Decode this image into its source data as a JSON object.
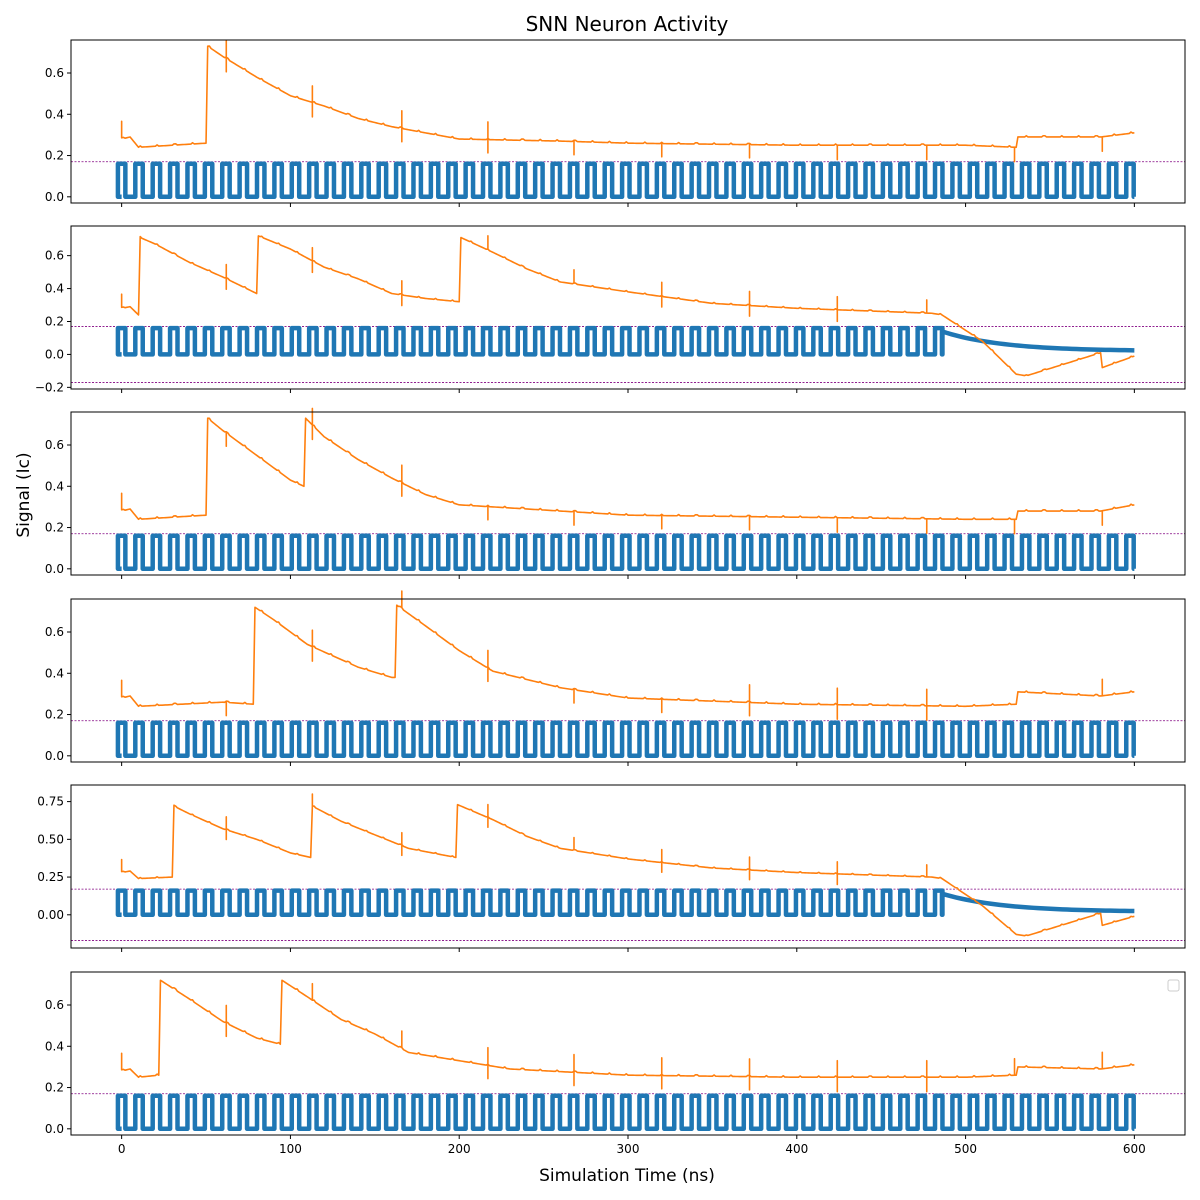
{
  "chart_data": {
    "type": "line",
    "title": "SNN Neuron Activity",
    "xlabel": "Simulation Time (ns)",
    "ylabel": "Signal (Ic)",
    "xlim": [
      -30,
      630
    ],
    "x_ticks": [
      0,
      100,
      200,
      300,
      400,
      500,
      600
    ],
    "colors": {
      "spike_trace": "#1f77b4",
      "membrane_trace": "#ff7f0e",
      "threshold_line": "#800080"
    },
    "threshold": 0.17,
    "spike_period_ns": 10.3,
    "spike_peak": 0.16,
    "grid": false,
    "legend": "top-right (empty)",
    "subplots": [
      {
        "ylim": [
          -0.03,
          0.76
        ],
        "y_ticks": [
          0.0,
          0.2,
          0.4,
          0.6
        ],
        "y_tick_labels": [
          "0.0",
          "0.2",
          "0.4",
          "0.6"
        ],
        "threshold_lines": [
          0.17
        ],
        "spike_end_x": 600,
        "decay": null,
        "membrane_knots": [
          [
            0,
            0.28
          ],
          [
            5,
            0.29
          ],
          [
            10,
            0.24
          ],
          [
            30,
            0.25
          ],
          [
            50,
            0.26
          ],
          [
            51,
            0.73
          ],
          [
            60,
            0.68
          ],
          [
            80,
            0.58
          ],
          [
            100,
            0.49
          ],
          [
            120,
            0.44
          ],
          [
            140,
            0.38
          ],
          [
            160,
            0.34
          ],
          [
            180,
            0.31
          ],
          [
            200,
            0.28
          ],
          [
            260,
            0.27
          ],
          [
            300,
            0.26
          ],
          [
            400,
            0.25
          ],
          [
            500,
            0.25
          ],
          [
            530,
            0.24
          ],
          [
            531,
            0.29
          ],
          [
            580,
            0.29
          ],
          [
            600,
            0.31
          ]
        ],
        "dips_ns": [
          62,
          113,
          166,
          217,
          268,
          320,
          372,
          424,
          477,
          529,
          581
        ],
        "spikes_up_ns": [
          0,
          62,
          113,
          166,
          217
        ]
      },
      {
        "ylim": [
          -0.21,
          0.78
        ],
        "y_ticks": [
          -0.2,
          0.0,
          0.2,
          0.4,
          0.6
        ],
        "y_tick_labels": [
          "−0.2",
          "0.0",
          "0.2",
          "0.4",
          "0.6"
        ],
        "threshold_lines": [
          0.17,
          -0.17
        ],
        "spike_end_x": 486,
        "decay": {
          "start_x": 486,
          "start_y": 0.14,
          "end_x": 600,
          "end_y": 0.02
        },
        "membrane_knots": [
          [
            0,
            0.28
          ],
          [
            5,
            0.29
          ],
          [
            10,
            0.24
          ],
          [
            11,
            0.71
          ],
          [
            20,
            0.67
          ],
          [
            40,
            0.56
          ],
          [
            60,
            0.47
          ],
          [
            80,
            0.37
          ],
          [
            81,
            0.72
          ],
          [
            100,
            0.64
          ],
          [
            120,
            0.53
          ],
          [
            140,
            0.46
          ],
          [
            160,
            0.37
          ],
          [
            180,
            0.34
          ],
          [
            200,
            0.32
          ],
          [
            201,
            0.71
          ],
          [
            220,
            0.62
          ],
          [
            240,
            0.52
          ],
          [
            260,
            0.44
          ],
          [
            300,
            0.38
          ],
          [
            350,
            0.31
          ],
          [
            400,
            0.28
          ],
          [
            480,
            0.25
          ],
          [
            486,
            0.24
          ],
          [
            510,
            0.08
          ],
          [
            530,
            -0.12
          ],
          [
            536,
            -0.13
          ],
          [
            580,
            0.01
          ],
          [
            581,
            -0.08
          ],
          [
            600,
            -0.01
          ]
        ],
        "dips_ns": [
          62,
          113,
          166,
          320,
          372,
          424
        ],
        "spikes_up_ns": [
          0,
          62,
          113,
          166,
          217,
          268,
          320,
          372,
          424,
          477
        ]
      },
      {
        "ylim": [
          -0.03,
          0.76
        ],
        "y_ticks": [
          0.0,
          0.2,
          0.4,
          0.6
        ],
        "y_tick_labels": [
          "0.0",
          "0.2",
          "0.4",
          "0.6"
        ],
        "threshold_lines": [
          0.17
        ],
        "spike_end_x": 600,
        "decay": null,
        "membrane_knots": [
          [
            0,
            0.28
          ],
          [
            5,
            0.29
          ],
          [
            10,
            0.24
          ],
          [
            30,
            0.25
          ],
          [
            50,
            0.26
          ],
          [
            51,
            0.73
          ],
          [
            60,
            0.67
          ],
          [
            80,
            0.55
          ],
          [
            100,
            0.43
          ],
          [
            108,
            0.4
          ],
          [
            109,
            0.73
          ],
          [
            120,
            0.64
          ],
          [
            140,
            0.53
          ],
          [
            160,
            0.44
          ],
          [
            180,
            0.36
          ],
          [
            200,
            0.31
          ],
          [
            260,
            0.28
          ],
          [
            300,
            0.26
          ],
          [
            400,
            0.25
          ],
          [
            500,
            0.24
          ],
          [
            530,
            0.24
          ],
          [
            531,
            0.28
          ],
          [
            580,
            0.28
          ],
          [
            600,
            0.31
          ]
        ],
        "dips_ns": [
          62,
          113,
          166,
          217,
          268,
          320,
          372,
          424,
          477,
          529,
          581
        ],
        "spikes_up_ns": [
          0,
          113,
          166
        ]
      },
      {
        "ylim": [
          -0.03,
          0.76
        ],
        "y_ticks": [
          0.0,
          0.2,
          0.4,
          0.6
        ],
        "y_tick_labels": [
          "0.0",
          "0.2",
          "0.4",
          "0.6"
        ],
        "threshold_lines": [
          0.17
        ],
        "spike_end_x": 600,
        "decay": null,
        "membrane_knots": [
          [
            0,
            0.28
          ],
          [
            5,
            0.29
          ],
          [
            10,
            0.24
          ],
          [
            60,
            0.26
          ],
          [
            78,
            0.25
          ],
          [
            79,
            0.72
          ],
          [
            90,
            0.66
          ],
          [
            110,
            0.54
          ],
          [
            140,
            0.43
          ],
          [
            160,
            0.38
          ],
          [
            162,
            0.38
          ],
          [
            163,
            0.73
          ],
          [
            180,
            0.63
          ],
          [
            200,
            0.51
          ],
          [
            220,
            0.41
          ],
          [
            260,
            0.33
          ],
          [
            300,
            0.28
          ],
          [
            400,
            0.25
          ],
          [
            500,
            0.24
          ],
          [
            530,
            0.25
          ],
          [
            531,
            0.31
          ],
          [
            580,
            0.29
          ],
          [
            600,
            0.31
          ]
        ],
        "dips_ns": [
          62,
          113,
          217,
          268,
          320,
          372,
          424,
          477
        ],
        "spikes_up_ns": [
          0,
          113,
          166,
          217,
          372,
          424,
          477,
          581
        ]
      },
      {
        "ylim": [
          -0.22,
          0.86
        ],
        "y_ticks": [
          0.0,
          0.25,
          0.5,
          0.75
        ],
        "y_tick_labels": [
          "0.00",
          "0.25",
          "0.50",
          "0.75"
        ],
        "threshold_lines": [
          0.17,
          -0.17
        ],
        "spike_end_x": 486,
        "decay": {
          "start_x": 486,
          "start_y": 0.14,
          "end_x": 600,
          "end_y": 0.02
        },
        "membrane_knots": [
          [
            0,
            0.28
          ],
          [
            5,
            0.29
          ],
          [
            10,
            0.24
          ],
          [
            30,
            0.25
          ],
          [
            31,
            0.72
          ],
          [
            40,
            0.67
          ],
          [
            60,
            0.57
          ],
          [
            80,
            0.5
          ],
          [
            100,
            0.41
          ],
          [
            112,
            0.38
          ],
          [
            113,
            0.72
          ],
          [
            130,
            0.62
          ],
          [
            150,
            0.53
          ],
          [
            170,
            0.44
          ],
          [
            198,
            0.38
          ],
          [
            199,
            0.73
          ],
          [
            220,
            0.63
          ],
          [
            240,
            0.52
          ],
          [
            260,
            0.44
          ],
          [
            300,
            0.37
          ],
          [
            350,
            0.31
          ],
          [
            400,
            0.28
          ],
          [
            480,
            0.25
          ],
          [
            486,
            0.24
          ],
          [
            510,
            0.06
          ],
          [
            530,
            -0.13
          ],
          [
            536,
            -0.14
          ],
          [
            580,
            0.01
          ],
          [
            581,
            -0.07
          ],
          [
            600,
            -0.01
          ]
        ],
        "dips_ns": [
          62,
          166,
          217,
          320,
          372,
          424
        ],
        "spikes_up_ns": [
          0,
          62,
          113,
          166,
          217,
          268,
          320,
          372,
          424,
          477
        ]
      },
      {
        "ylim": [
          -0.03,
          0.76
        ],
        "y_ticks": [
          0.0,
          0.2,
          0.4,
          0.6
        ],
        "y_tick_labels": [
          "0.0",
          "0.2",
          "0.4",
          "0.6"
        ],
        "threshold_lines": [
          0.17
        ],
        "spike_end_x": 600,
        "decay": null,
        "membrane_knots": [
          [
            0,
            0.28
          ],
          [
            5,
            0.29
          ],
          [
            10,
            0.25
          ],
          [
            22,
            0.26
          ],
          [
            23,
            0.72
          ],
          [
            40,
            0.63
          ],
          [
            60,
            0.52
          ],
          [
            80,
            0.44
          ],
          [
            94,
            0.41
          ],
          [
            95,
            0.72
          ],
          [
            110,
            0.64
          ],
          [
            130,
            0.53
          ],
          [
            150,
            0.46
          ],
          [
            170,
            0.37
          ],
          [
            200,
            0.33
          ],
          [
            230,
            0.29
          ],
          [
            300,
            0.26
          ],
          [
            400,
            0.25
          ],
          [
            500,
            0.25
          ],
          [
            530,
            0.26
          ],
          [
            531,
            0.3
          ],
          [
            580,
            0.29
          ],
          [
            600,
            0.31
          ]
        ],
        "dips_ns": [
          62,
          217,
          268,
          320,
          372,
          424,
          477
        ],
        "spikes_up_ns": [
          0,
          62,
          113,
          166,
          217,
          268,
          320,
          372,
          424,
          477,
          529,
          581
        ]
      }
    ]
  }
}
